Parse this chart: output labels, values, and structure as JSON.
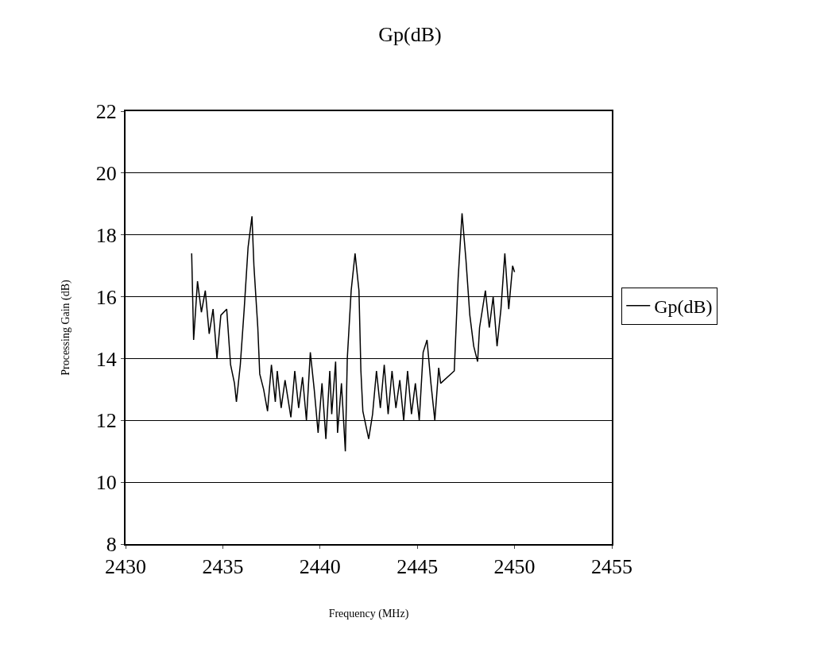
{
  "chart_data": {
    "type": "line",
    "title": "Gp(dB)",
    "xlabel": "Frequency (MHz)",
    "ylabel": "Processing Gain (dB)",
    "xlim": [
      2430,
      2455
    ],
    "xticks": [
      2430,
      2435,
      2440,
      2445,
      2450,
      2455
    ],
    "ylim": [
      8,
      22
    ],
    "yticks": [
      8,
      10,
      12,
      14,
      16,
      18,
      20,
      22
    ],
    "grid": "y",
    "legend": "right",
    "marker": "none",
    "line_style": "solid",
    "x": [
      2433.4,
      2433.5,
      2433.7,
      2433.9,
      2434.1,
      2434.3,
      2434.5,
      2434.7,
      2434.9,
      2435.2,
      2435.4,
      2435.6,
      2435.7,
      2435.9,
      2436.1,
      2436.3,
      2436.5,
      2436.6,
      2436.8,
      2436.9,
      2437.1,
      2437.3,
      2437.5,
      2437.7,
      2437.8,
      2438.0,
      2438.2,
      2438.5,
      2438.7,
      2438.9,
      2439.1,
      2439.3,
      2439.5,
      2439.7,
      2439.9,
      2440.1,
      2440.3,
      2440.5,
      2440.6,
      2440.8,
      2440.9,
      2441.1,
      2441.3,
      2441.4,
      2441.6,
      2441.8,
      2442.0,
      2442.1,
      2442.2,
      2442.5,
      2442.7,
      2442.9,
      2443.1,
      2443.3,
      2443.5,
      2443.7,
      2443.9,
      2444.1,
      2444.3,
      2444.5,
      2444.7,
      2444.9,
      2445.1,
      2445.3,
      2445.5,
      2445.7,
      2445.9,
      2446.1,
      2446.2,
      2446.9,
      2447.1,
      2447.3,
      2447.5,
      2447.7,
      2447.9,
      2448.1,
      2448.2,
      2448.5,
      2448.7,
      2448.9,
      2449.1,
      2449.3,
      2449.5,
      2449.7,
      2449.9,
      2450.0
    ],
    "series": [
      {
        "name": "Gp(dB)",
        "color": "#000000",
        "values": [
          17.4,
          14.6,
          16.5,
          15.5,
          16.2,
          14.8,
          15.6,
          14.0,
          15.4,
          15.6,
          13.8,
          13.2,
          12.6,
          13.8,
          15.6,
          17.6,
          18.6,
          17.0,
          15.0,
          13.5,
          13.0,
          12.3,
          13.8,
          12.6,
          13.6,
          12.4,
          13.3,
          12.1,
          13.6,
          12.4,
          13.4,
          12.0,
          14.2,
          13.0,
          11.6,
          13.2,
          11.4,
          13.6,
          12.2,
          13.9,
          11.6,
          13.2,
          11.0,
          14.0,
          16.2,
          17.4,
          16.2,
          13.6,
          12.3,
          11.4,
          12.2,
          13.6,
          12.4,
          13.8,
          12.2,
          13.6,
          12.4,
          13.3,
          12.0,
          13.6,
          12.2,
          13.2,
          12.0,
          14.2,
          14.6,
          13.2,
          12.0,
          13.7,
          13.2,
          13.6,
          16.6,
          18.7,
          17.2,
          15.4,
          14.4,
          13.9,
          15.0,
          16.2,
          15.0,
          16.0,
          14.4,
          15.6,
          17.4,
          15.6,
          17.0,
          16.8
        ]
      }
    ]
  }
}
